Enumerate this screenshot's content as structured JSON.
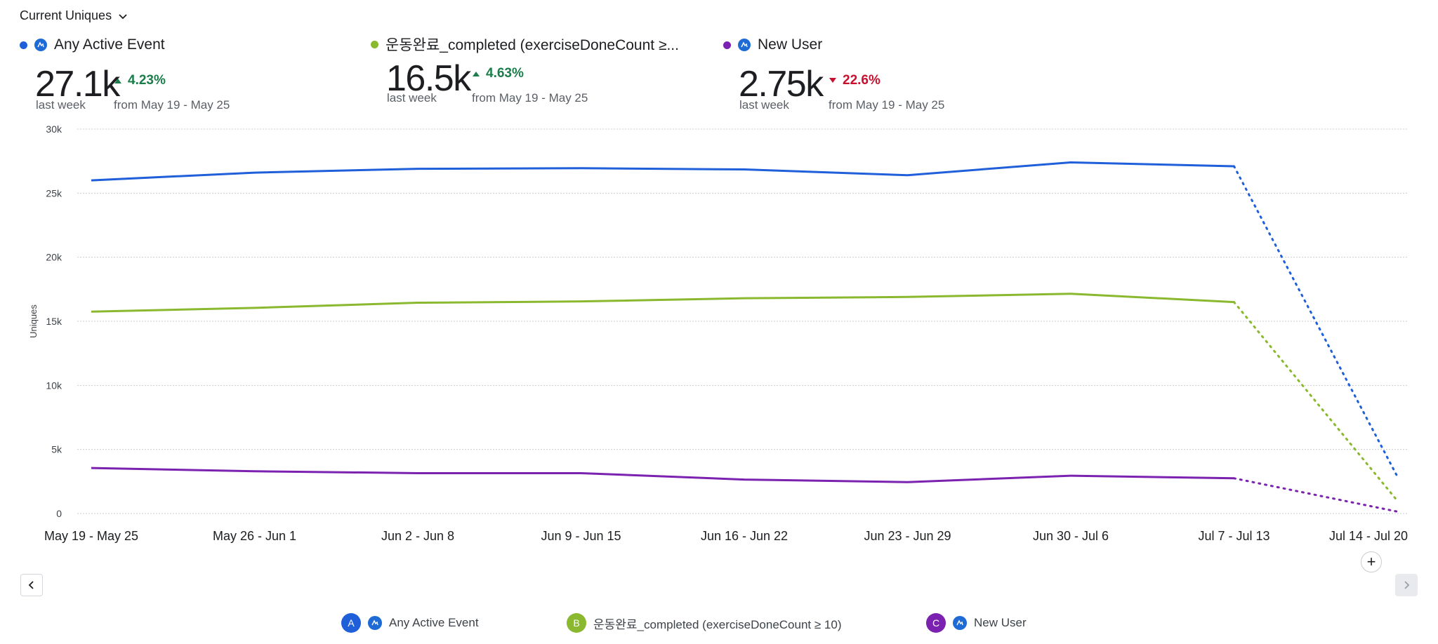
{
  "header": {
    "metric_label": "Current Uniques"
  },
  "kpis": [
    {
      "name": "Any Active Event",
      "value": "27.1k",
      "sub": "last week",
      "delta": "4.23%",
      "direction": "up",
      "from": "from May 19 - May 25",
      "color": "#1f5fd9",
      "has_icon": true
    },
    {
      "name": "운동완료_completed (exerciseDoneCount ≥...",
      "value": "16.5k",
      "sub": "last week",
      "delta": "4.63%",
      "direction": "up",
      "from": "from May 19 - May 25",
      "color": "#8ab82e",
      "has_icon": false
    },
    {
      "name": "New User",
      "value": "2.75k",
      "sub": "last week",
      "delta": "22.6%",
      "direction": "down",
      "from": "from May 19 - May 25",
      "color": "#7b22b0",
      "has_icon": true
    }
  ],
  "chart_data": {
    "type": "line",
    "ylabel": "Uniques",
    "xlabel": "",
    "ylim": [
      0,
      30000
    ],
    "yticks": [
      "0",
      "5k",
      "10k",
      "15k",
      "20k",
      "25k",
      "30k"
    ],
    "ytick_values": [
      0,
      5000,
      10000,
      15000,
      20000,
      25000,
      30000
    ],
    "grid": true,
    "categories": [
      "May 19 - May 25",
      "May 26 - Jun 1",
      "Jun 2 - Jun 8",
      "Jun 9 - Jun 15",
      "Jun 16 - Jun 22",
      "Jun 23 - Jun 29",
      "Jun 30 - Jul 6",
      "Jul 7 - Jul 13",
      "Jul 14 - Jul 20"
    ],
    "incomplete_from_index": 7,
    "series": [
      {
        "name": "Any Active Event",
        "letter": "A",
        "color": "#1f5fd9",
        "values": [
          26000,
          26600,
          26900,
          26950,
          26850,
          26400,
          27400,
          27100,
          2900
        ]
      },
      {
        "name": "운동완료_completed (exerciseDoneCount ≥ 10)",
        "letter": "B",
        "color": "#8ab82e",
        "values": [
          15750,
          16050,
          16450,
          16550,
          16800,
          16900,
          17150,
          16500,
          1000
        ]
      },
      {
        "name": "New User",
        "letter": "C",
        "color": "#7b22b0",
        "values": [
          3550,
          3300,
          3150,
          3150,
          2650,
          2450,
          2950,
          2750,
          150
        ]
      }
    ]
  },
  "legend": [
    {
      "letter": "A",
      "label": "Any Active Event",
      "color": "#1f5fd9",
      "has_icon": true
    },
    {
      "letter": "B",
      "label": "운동완료_completed (exerciseDoneCount ≥ 10)",
      "color": "#8ab82e",
      "has_icon": false
    },
    {
      "letter": "C",
      "label": "New User",
      "color": "#7b22b0",
      "has_icon": true
    }
  ],
  "icons": {
    "event": "amplitude-event-icon",
    "dropdown": "chevron-down-icon",
    "prev": "chevron-left-icon",
    "next": "chevron-right-icon",
    "add": "plus-icon"
  }
}
